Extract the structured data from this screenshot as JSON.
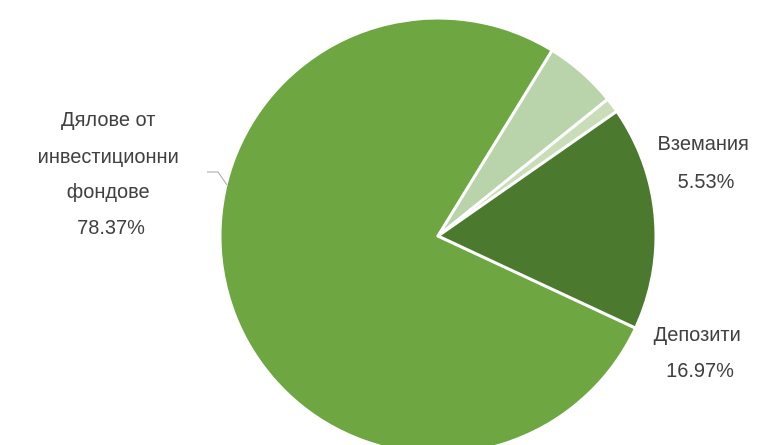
{
  "chart_data": {
    "type": "pie",
    "title": "",
    "start_angle_deg": 115,
    "direction": "clockwise",
    "slices": [
      {
        "label_lines": [
          "Дялове от",
          "инвестиционни",
          "фондове"
        ],
        "value_label": "78.37%",
        "value": 78.37,
        "color": "#6ea641"
      },
      {
        "label_lines": [
          "Вземания"
        ],
        "value_label": "5.53%",
        "value": 5.53,
        "color": "#b9d3ab"
      },
      {
        "label_lines": [],
        "value_label": "",
        "value": 1.13,
        "color": "#c9ddb9"
      },
      {
        "label_lines": [
          "Депозити"
        ],
        "value_label": "16.97%",
        "value": 16.97,
        "color": "#4b7a2e"
      }
    ],
    "legend": "none"
  }
}
